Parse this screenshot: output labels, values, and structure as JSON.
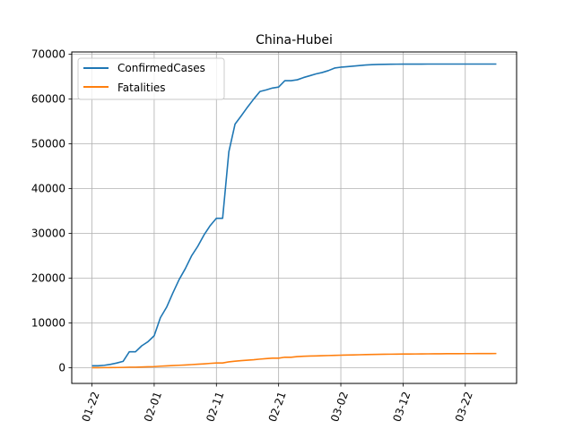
{
  "chart_data": {
    "type": "line",
    "title": "China-Hubei",
    "xlabel": "",
    "ylabel": "",
    "x_start": "2020-01-22",
    "x_end": "2020-03-27",
    "x_ticks": [
      "01-22",
      "02-01",
      "02-11",
      "02-21",
      "03-02",
      "03-12",
      "03-22"
    ],
    "y_ticks": [
      0,
      10000,
      20000,
      30000,
      40000,
      50000,
      60000,
      70000
    ],
    "ylim": [
      -3500,
      70500
    ],
    "grid": true,
    "legend_position": "upper-left",
    "series": [
      {
        "name": "ConfirmedCases",
        "color": "#1f77b4",
        "points": [
          [
            "2020-01-22",
            444
          ],
          [
            "2020-01-23",
            444
          ],
          [
            "2020-01-24",
            549
          ],
          [
            "2020-01-25",
            761
          ],
          [
            "2020-01-26",
            1058
          ],
          [
            "2020-01-27",
            1423
          ],
          [
            "2020-01-28",
            3554
          ],
          [
            "2020-01-29",
            3554
          ],
          [
            "2020-01-30",
            4903
          ],
          [
            "2020-01-31",
            5806
          ],
          [
            "2020-02-01",
            7153
          ],
          [
            "2020-02-02",
            11177
          ],
          [
            "2020-02-03",
            13522
          ],
          [
            "2020-02-04",
            16678
          ],
          [
            "2020-02-05",
            19665
          ],
          [
            "2020-02-06",
            22112
          ],
          [
            "2020-02-07",
            24953
          ],
          [
            "2020-02-08",
            27100
          ],
          [
            "2020-02-09",
            29631
          ],
          [
            "2020-02-10",
            31728
          ],
          [
            "2020-02-11",
            33366
          ],
          [
            "2020-02-12",
            33366
          ],
          [
            "2020-02-13",
            48206
          ],
          [
            "2020-02-14",
            54406
          ],
          [
            "2020-02-15",
            56249
          ],
          [
            "2020-02-16",
            58182
          ],
          [
            "2020-02-17",
            59989
          ],
          [
            "2020-02-18",
            61682
          ],
          [
            "2020-02-19",
            62031
          ],
          [
            "2020-02-20",
            62442
          ],
          [
            "2020-02-21",
            62662
          ],
          [
            "2020-02-22",
            64084
          ],
          [
            "2020-02-23",
            64084
          ],
          [
            "2020-02-24",
            64287
          ],
          [
            "2020-02-25",
            64786
          ],
          [
            "2020-02-26",
            65187
          ],
          [
            "2020-02-27",
            65596
          ],
          [
            "2020-02-28",
            65914
          ],
          [
            "2020-02-29",
            66337
          ],
          [
            "2020-03-01",
            66907
          ],
          [
            "2020-03-02",
            67103
          ],
          [
            "2020-03-03",
            67217
          ],
          [
            "2020-03-04",
            67332
          ],
          [
            "2020-03-05",
            67466
          ],
          [
            "2020-03-06",
            67592
          ],
          [
            "2020-03-07",
            67666
          ],
          [
            "2020-03-08",
            67707
          ],
          [
            "2020-03-09",
            67743
          ],
          [
            "2020-03-10",
            67760
          ],
          [
            "2020-03-11",
            67773
          ],
          [
            "2020-03-12",
            67781
          ],
          [
            "2020-03-13",
            67786
          ],
          [
            "2020-03-14",
            67790
          ],
          [
            "2020-03-15",
            67794
          ],
          [
            "2020-03-16",
            67798
          ],
          [
            "2020-03-17",
            67799
          ],
          [
            "2020-03-18",
            67800
          ],
          [
            "2020-03-19",
            67800
          ],
          [
            "2020-03-20",
            67800
          ],
          [
            "2020-03-21",
            67800
          ],
          [
            "2020-03-22",
            67800
          ],
          [
            "2020-03-23",
            67800
          ],
          [
            "2020-03-24",
            67801
          ],
          [
            "2020-03-25",
            67801
          ],
          [
            "2020-03-26",
            67801
          ],
          [
            "2020-03-27",
            67801
          ]
        ]
      },
      {
        "name": "Fatalities",
        "color": "#ff7f0e",
        "points": [
          [
            "2020-01-22",
            17
          ],
          [
            "2020-01-23",
            17
          ],
          [
            "2020-01-24",
            24
          ],
          [
            "2020-01-25",
            40
          ],
          [
            "2020-01-26",
            52
          ],
          [
            "2020-01-27",
            76
          ],
          [
            "2020-01-28",
            125
          ],
          [
            "2020-01-29",
            125
          ],
          [
            "2020-01-30",
            162
          ],
          [
            "2020-01-31",
            204
          ],
          [
            "2020-02-01",
            249
          ],
          [
            "2020-02-02",
            350
          ],
          [
            "2020-02-03",
            414
          ],
          [
            "2020-02-04",
            479
          ],
          [
            "2020-02-05",
            549
          ],
          [
            "2020-02-06",
            618
          ],
          [
            "2020-02-07",
            699
          ],
          [
            "2020-02-08",
            780
          ],
          [
            "2020-02-09",
            871
          ],
          [
            "2020-02-10",
            974
          ],
          [
            "2020-02-11",
            1068
          ],
          [
            "2020-02-12",
            1068
          ],
          [
            "2020-02-13",
            1310
          ],
          [
            "2020-02-14",
            1457
          ],
          [
            "2020-02-15",
            1596
          ],
          [
            "2020-02-16",
            1696
          ],
          [
            "2020-02-17",
            1789
          ],
          [
            "2020-02-18",
            1921
          ],
          [
            "2020-02-19",
            2029
          ],
          [
            "2020-02-20",
            2144
          ],
          [
            "2020-02-21",
            2144
          ],
          [
            "2020-02-22",
            2346
          ],
          [
            "2020-02-23",
            2346
          ],
          [
            "2020-02-24",
            2495
          ],
          [
            "2020-02-25",
            2563
          ],
          [
            "2020-02-26",
            2615
          ],
          [
            "2020-02-27",
            2641
          ],
          [
            "2020-02-28",
            2682
          ],
          [
            "2020-02-29",
            2727
          ],
          [
            "2020-03-01",
            2761
          ],
          [
            "2020-03-02",
            2803
          ],
          [
            "2020-03-03",
            2835
          ],
          [
            "2020-03-04",
            2871
          ],
          [
            "2020-03-05",
            2902
          ],
          [
            "2020-03-06",
            2931
          ],
          [
            "2020-03-07",
            2959
          ],
          [
            "2020-03-08",
            2986
          ],
          [
            "2020-03-09",
            3008
          ],
          [
            "2020-03-10",
            3024
          ],
          [
            "2020-03-11",
            3046
          ],
          [
            "2020-03-12",
            3056
          ],
          [
            "2020-03-13",
            3062
          ],
          [
            "2020-03-14",
            3075
          ],
          [
            "2020-03-15",
            3085
          ],
          [
            "2020-03-16",
            3099
          ],
          [
            "2020-03-17",
            3111
          ],
          [
            "2020-03-18",
            3122
          ],
          [
            "2020-03-19",
            3130
          ],
          [
            "2020-03-20",
            3133
          ],
          [
            "2020-03-21",
            3139
          ],
          [
            "2020-03-22",
            3153
          ],
          [
            "2020-03-23",
            3153
          ],
          [
            "2020-03-24",
            3160
          ],
          [
            "2020-03-25",
            3163
          ],
          [
            "2020-03-26",
            3169
          ],
          [
            "2020-03-27",
            3174
          ]
        ]
      }
    ]
  }
}
